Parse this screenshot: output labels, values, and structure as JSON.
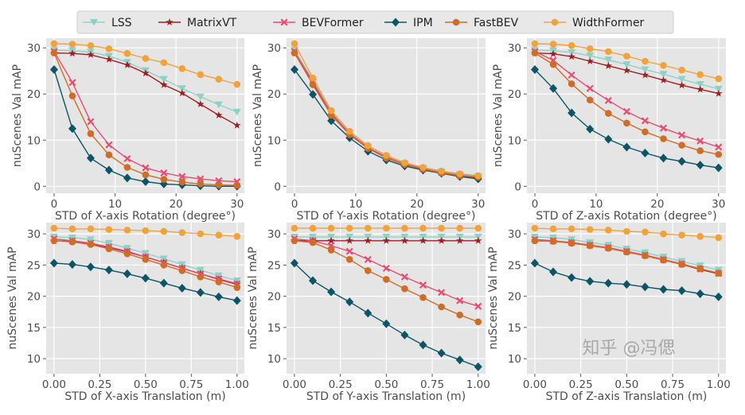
{
  "legend": {
    "placement": "top-center",
    "entries": [
      {
        "name": "LSS",
        "color": "#8ed1c6",
        "marker": "triangle-down"
      },
      {
        "name": "MatrixVT",
        "color": "#9e1f23",
        "marker": "star"
      },
      {
        "name": "BEVFormer",
        "color": "#e94b6e",
        "marker": "x-filled"
      },
      {
        "name": "IPM",
        "color": "#0b5566",
        "marker": "diamond"
      },
      {
        "name": "FastBEV",
        "color": "#cf6c28",
        "marker": "circle"
      },
      {
        "name": "WidthFormer",
        "color": "#f2a23a",
        "marker": "circle"
      }
    ]
  },
  "watermark": "知乎 @冯偲",
  "chart_data": [
    {
      "type": "line",
      "xlabel": "STD of X-axis Rotation (degree°)",
      "ylabel": "nuScenes Val mAP",
      "grid": true,
      "x": [
        0,
        3,
        6,
        9,
        12,
        15,
        18,
        21,
        24,
        27,
        30
      ],
      "xlim": [
        -1.3,
        31.2
      ],
      "ylim": [
        -1.5,
        32.1
      ],
      "xticks": [
        "0",
        "10",
        "20",
        "30"
      ],
      "xtick_values": [
        0,
        10,
        20,
        30
      ],
      "yticks": [
        "0",
        "10",
        "20",
        "30"
      ],
      "ytick_values": [
        0,
        10,
        20,
        30
      ],
      "series": [
        {
          "name": "LSS",
          "values": [
            29.5,
            29.4,
            29.1,
            28.2,
            26.9,
            25.1,
            23.2,
            21.2,
            19.4,
            17.7,
            16.1
          ]
        },
        {
          "name": "MatrixVT",
          "values": [
            28.9,
            28.8,
            28.5,
            27.5,
            26.3,
            24.5,
            22.0,
            20.2,
            17.8,
            15.4,
            13.2
          ]
        },
        {
          "name": "BEVFormer",
          "values": [
            29.2,
            22.5,
            14.0,
            9.0,
            6.0,
            4.0,
            2.9,
            2.1,
            1.6,
            1.2,
            1.0
          ]
        },
        {
          "name": "IPM",
          "values": [
            25.3,
            12.5,
            6.1,
            3.5,
            1.8,
            1.0,
            0.5,
            0.3,
            0.1,
            0.0,
            0.0
          ]
        },
        {
          "name": "FastBEV",
          "values": [
            28.9,
            19.6,
            11.4,
            6.8,
            4.1,
            2.5,
            1.5,
            0.9,
            0.5,
            0.3,
            0.2
          ]
        },
        {
          "name": "WidthFormer",
          "values": [
            30.9,
            30.8,
            30.5,
            29.8,
            28.8,
            27.7,
            26.8,
            25.5,
            24.2,
            23.2,
            22.1
          ]
        }
      ]
    },
    {
      "type": "line",
      "xlabel": "STD of Y-axis Rotation (degree°)",
      "ylabel": "nuScenes Val mAP",
      "grid": true,
      "x": [
        0,
        3,
        6,
        9,
        12,
        15,
        18,
        21,
        24,
        27,
        30
      ],
      "xlim": [
        -1.3,
        31.2
      ],
      "ylim": [
        -1.5,
        32.1
      ],
      "xticks": [
        "0",
        "10",
        "20",
        "30"
      ],
      "xtick_values": [
        0,
        10,
        20,
        30
      ],
      "yticks": [
        "0",
        "10",
        "20",
        "30"
      ],
      "ytick_values": [
        0,
        10,
        20,
        30
      ],
      "series": [
        {
          "name": "LSS",
          "values": [
            29.5,
            23.0,
            16.0,
            11.6,
            8.5,
            6.4,
            4.9,
            3.9,
            3.1,
            2.5,
            2.1
          ]
        },
        {
          "name": "MatrixVT",
          "values": [
            28.9,
            22.3,
            15.5,
            11.2,
            8.2,
            6.2,
            4.7,
            3.7,
            2.9,
            2.3,
            1.9
          ]
        },
        {
          "name": "BEVFormer",
          "values": [
            29.2,
            22.6,
            15.8,
            11.4,
            8.4,
            6.3,
            4.8,
            3.8,
            3.0,
            2.4,
            2.0
          ]
        },
        {
          "name": "IPM",
          "values": [
            25.3,
            19.9,
            14.2,
            10.5,
            7.6,
            5.7,
            4.4,
            3.5,
            2.8,
            2.1,
            1.6
          ]
        },
        {
          "name": "FastBEV",
          "values": [
            28.9,
            22.0,
            15.4,
            11.2,
            8.2,
            6.1,
            4.7,
            3.7,
            2.9,
            2.3,
            2.0
          ]
        },
        {
          "name": "WidthFormer",
          "values": [
            30.9,
            23.5,
            16.4,
            11.9,
            8.8,
            6.7,
            5.1,
            4.1,
            3.3,
            2.7,
            2.3
          ]
        }
      ]
    },
    {
      "type": "line",
      "xlabel": "STD of Z-axis Rotation (degree°)",
      "ylabel": "nuScenes Val mAP",
      "grid": true,
      "x": [
        0,
        3,
        6,
        9,
        12,
        15,
        18,
        21,
        24,
        27,
        30
      ],
      "xlim": [
        -1.3,
        31.2
      ],
      "ylim": [
        -1.5,
        32.1
      ],
      "xticks": [
        "0",
        "10",
        "20",
        "30"
      ],
      "xtick_values": [
        0,
        10,
        20,
        30
      ],
      "yticks": [
        "0",
        "10",
        "20",
        "30"
      ],
      "ytick_values": [
        0,
        10,
        20,
        30
      ],
      "series": [
        {
          "name": "LSS",
          "values": [
            29.5,
            29.4,
            29.0,
            28.3,
            27.4,
            26.4,
            25.3,
            24.3,
            23.2,
            22.1,
            21.1
          ]
        },
        {
          "name": "MatrixVT",
          "values": [
            28.9,
            28.7,
            28.1,
            27.1,
            26.1,
            25.1,
            24.1,
            23.0,
            21.9,
            21.0,
            20.1
          ]
        },
        {
          "name": "BEVFormer",
          "values": [
            29.2,
            27.3,
            24.1,
            21.2,
            18.6,
            16.2,
            14.2,
            12.6,
            11.1,
            9.8,
            8.5
          ]
        },
        {
          "name": "IPM",
          "values": [
            25.3,
            21.2,
            15.9,
            12.4,
            10.2,
            8.5,
            7.2,
            6.1,
            5.4,
            4.6,
            4.0
          ]
        },
        {
          "name": "FastBEV",
          "values": [
            28.9,
            26.4,
            22.2,
            18.7,
            15.8,
            13.7,
            11.8,
            10.3,
            8.9,
            7.7,
            6.9
          ]
        },
        {
          "name": "WidthFormer",
          "values": [
            30.9,
            30.8,
            30.5,
            29.8,
            29.2,
            28.2,
            27.1,
            26.2,
            25.2,
            24.2,
            23.3
          ]
        }
      ]
    },
    {
      "type": "line",
      "xlabel": "STD of X-axis Translation (m)",
      "ylabel": "nuScenes Val mAP",
      "grid": true,
      "x": [
        0,
        0.1,
        0.2,
        0.3,
        0.4,
        0.5,
        0.6,
        0.7,
        0.8,
        0.9,
        1.0
      ],
      "xlim": [
        -0.043,
        1.04
      ],
      "ylim": [
        7.6,
        31.8
      ],
      "xticks": [
        "0.00",
        "0.25",
        "0.50",
        "0.75",
        "1.00"
      ],
      "xtick_values": [
        0,
        0.25,
        0.5,
        0.75,
        1
      ],
      "yticks": [
        "10",
        "15",
        "20",
        "25",
        "30"
      ],
      "ytick_values": [
        10,
        15,
        20,
        25,
        30
      ],
      "series": [
        {
          "name": "LSS",
          "values": [
            29.5,
            29.4,
            29.1,
            28.5,
            27.7,
            26.9,
            26.0,
            25.1,
            24.2,
            23.3,
            22.5
          ]
        },
        {
          "name": "MatrixVT",
          "values": [
            28.9,
            28.8,
            28.4,
            27.8,
            27.1,
            26.3,
            25.4,
            24.5,
            23.6,
            22.7,
            21.9
          ]
        },
        {
          "name": "BEVFormer",
          "values": [
            29.2,
            28.9,
            28.5,
            27.9,
            27.2,
            26.3,
            25.4,
            24.5,
            23.6,
            22.8,
            22.0
          ]
        },
        {
          "name": "IPM",
          "values": [
            25.3,
            25.1,
            24.7,
            24.2,
            23.6,
            22.9,
            22.1,
            21.3,
            20.6,
            19.9,
            19.3
          ]
        },
        {
          "name": "FastBEV",
          "values": [
            28.9,
            28.7,
            28.3,
            27.6,
            26.8,
            25.9,
            25.0,
            24.1,
            23.1,
            22.3,
            21.4
          ]
        },
        {
          "name": "WidthFormer",
          "values": [
            30.9,
            30.8,
            30.8,
            30.7,
            30.6,
            30.5,
            30.4,
            30.2,
            30.0,
            29.8,
            29.6
          ]
        }
      ]
    },
    {
      "type": "line",
      "xlabel": "STD of Y-axis Translation (m)",
      "ylabel": "nuScenes Val mAP",
      "grid": true,
      "x": [
        0,
        0.1,
        0.2,
        0.3,
        0.4,
        0.5,
        0.6,
        0.7,
        0.8,
        0.9,
        1.0
      ],
      "xlim": [
        -0.043,
        1.04
      ],
      "ylim": [
        7.6,
        31.8
      ],
      "xticks": [
        "0.00",
        "0.25",
        "0.50",
        "0.75",
        "1.00"
      ],
      "xtick_values": [
        0,
        0.25,
        0.5,
        0.75,
        1
      ],
      "yticks": [
        "10",
        "15",
        "20",
        "25",
        "30"
      ],
      "ytick_values": [
        10,
        15,
        20,
        25,
        30
      ],
      "series": [
        {
          "name": "LSS",
          "values": [
            29.5,
            29.5,
            29.5,
            29.5,
            29.5,
            29.5,
            29.5,
            29.5,
            29.5,
            29.5,
            29.5
          ]
        },
        {
          "name": "MatrixVT",
          "values": [
            28.9,
            28.9,
            28.9,
            28.9,
            28.9,
            28.9,
            28.9,
            28.9,
            28.9,
            28.9,
            28.9
          ]
        },
        {
          "name": "BEVFormer",
          "values": [
            29.2,
            28.9,
            28.1,
            27.2,
            25.9,
            24.5,
            23.1,
            21.8,
            20.6,
            19.3,
            18.4
          ]
        },
        {
          "name": "IPM",
          "values": [
            25.3,
            22.5,
            20.7,
            19.1,
            17.3,
            15.6,
            13.8,
            12.2,
            10.9,
            9.8,
            8.7
          ]
        },
        {
          "name": "FastBEV",
          "values": [
            28.9,
            28.6,
            27.4,
            25.9,
            24.1,
            22.7,
            21.2,
            19.8,
            18.3,
            17.0,
            15.9
          ]
        },
        {
          "name": "WidthFormer",
          "values": [
            30.9,
            30.9,
            30.9,
            30.9,
            30.9,
            30.9,
            30.9,
            30.9,
            30.9,
            30.9,
            30.9
          ]
        }
      ]
    },
    {
      "type": "line",
      "xlabel": "STD of Z-axis Translation (m)",
      "ylabel": "nuScenes Val mAP",
      "grid": true,
      "x": [
        0,
        0.1,
        0.2,
        0.3,
        0.4,
        0.5,
        0.6,
        0.7,
        0.8,
        0.9,
        1.0
      ],
      "xlim": [
        -0.043,
        1.04
      ],
      "ylim": [
        7.6,
        31.8
      ],
      "xticks": [
        "0.00",
        "0.25",
        "0.50",
        "0.75",
        "1.00"
      ],
      "xtick_values": [
        0,
        0.25,
        0.5,
        0.75,
        1
      ],
      "yticks": [
        "10",
        "15",
        "20",
        "25",
        "30"
      ],
      "ytick_values": [
        10,
        15,
        20,
        25,
        30
      ],
      "series": [
        {
          "name": "LSS",
          "values": [
            29.5,
            29.4,
            29.1,
            28.6,
            28.2,
            27.6,
            27.0,
            26.3,
            25.6,
            24.9,
            24.2
          ]
        },
        {
          "name": "MatrixVT",
          "values": [
            28.9,
            28.8,
            28.6,
            28.2,
            27.7,
            27.1,
            26.5,
            25.8,
            25.1,
            24.3,
            23.6
          ]
        },
        {
          "name": "BEVFormer",
          "values": [
            29.1,
            28.9,
            28.6,
            28.2,
            27.8,
            27.2,
            26.6,
            25.9,
            25.2,
            24.4,
            23.7
          ]
        },
        {
          "name": "IPM",
          "values": [
            25.3,
            23.9,
            23.0,
            22.4,
            22.1,
            21.9,
            21.5,
            21.1,
            20.9,
            20.4,
            19.9
          ]
        },
        {
          "name": "FastBEV",
          "values": [
            28.9,
            28.8,
            28.5,
            28.1,
            27.7,
            27.1,
            26.5,
            25.8,
            25.1,
            24.4,
            23.7
          ]
        },
        {
          "name": "WidthFormer",
          "values": [
            30.9,
            30.8,
            30.8,
            30.7,
            30.6,
            30.4,
            30.3,
            30.0,
            29.8,
            29.6,
            29.4
          ]
        }
      ]
    }
  ]
}
